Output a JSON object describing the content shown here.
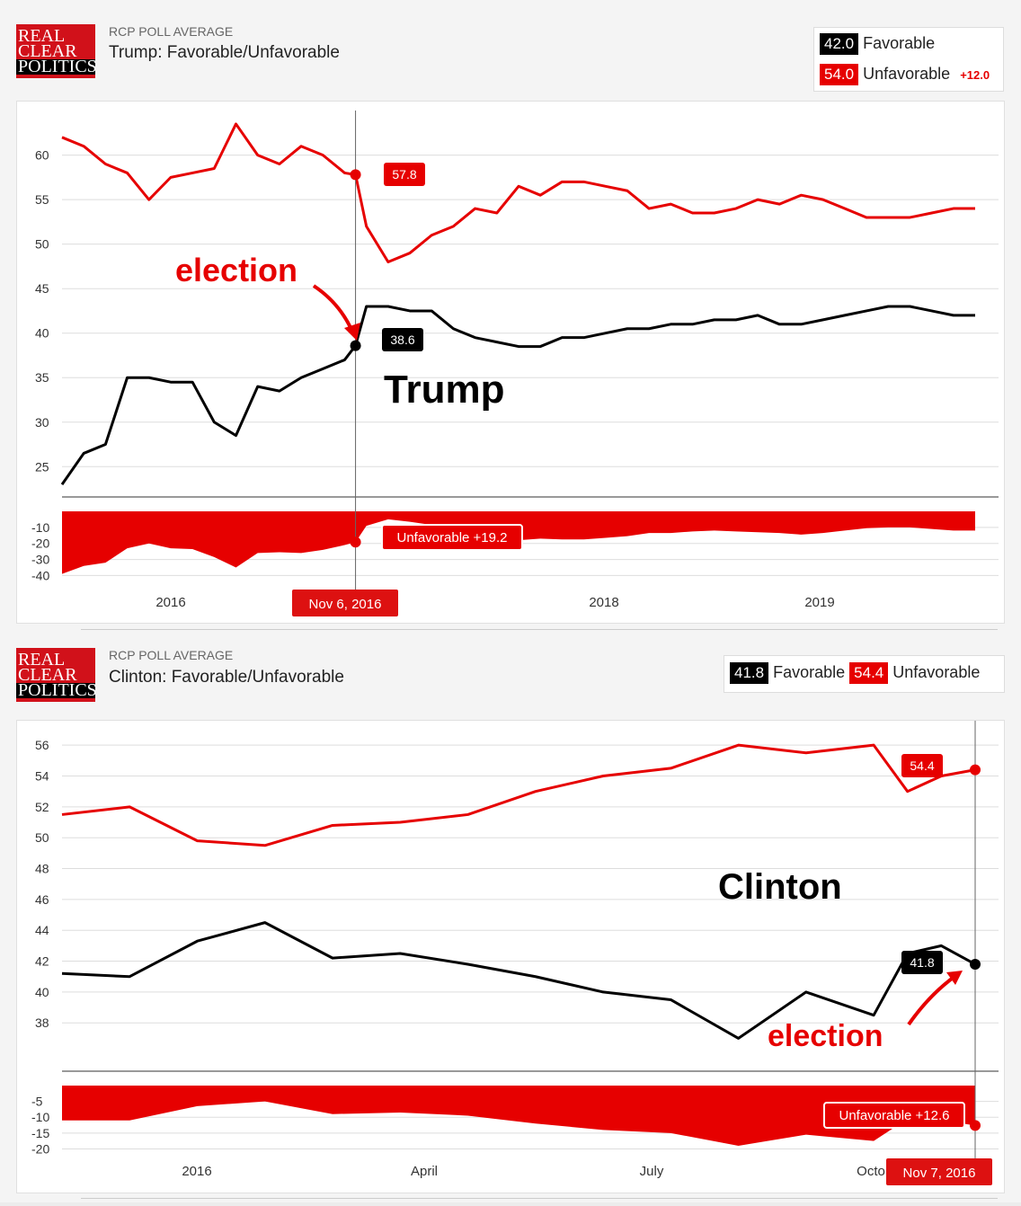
{
  "trump_panel": {
    "logo_line1": "REAL",
    "logo_line2": "CLEAR",
    "logo_line3": "POLITICS",
    "kicker": "RCP POLL AVERAGE",
    "title": "Trump: Favorable/Unfavorable",
    "favorable_value": "42.0",
    "favorable_label": "Favorable",
    "unfavorable_value": "54.0",
    "unfavorable_label": "Unfavorable",
    "spread": "+12.0"
  },
  "clinton_panel": {
    "logo_line1": "REAL",
    "logo_line2": "CLEAR",
    "logo_line3": "POLITICS",
    "kicker": "RCP POLL AVERAGE",
    "title": "Clinton: Favorable/Unfavorable",
    "favorable_value": "41.8",
    "favorable_label": "Favorable",
    "unfavorable_value": "54.4",
    "unfavorable_label": "Unfavorable"
  },
  "colors": {
    "red": "#e60000",
    "black": "#000000",
    "grid": "#dddddd"
  },
  "chart_data": [
    {
      "type": "line",
      "title": "Trump: Favorable/Unfavorable",
      "x": [
        2015.5,
        2015.6,
        2015.7,
        2015.8,
        2015.9,
        2016.0,
        2016.1,
        2016.2,
        2016.3,
        2016.4,
        2016.5,
        2016.6,
        2016.7,
        2016.8,
        2016.85,
        2016.9,
        2017.0,
        2017.1,
        2017.2,
        2017.3,
        2017.4,
        2017.5,
        2017.6,
        2017.7,
        2017.8,
        2017.9,
        2018.0,
        2018.1,
        2018.2,
        2018.3,
        2018.4,
        2018.5,
        2018.6,
        2018.7,
        2018.8,
        2018.9,
        2019.0,
        2019.1,
        2019.2,
        2019.3,
        2019.4,
        2019.5,
        2019.6,
        2019.7
      ],
      "series": [
        {
          "name": "Unfavorable",
          "values": [
            62,
            61,
            59,
            58,
            55,
            57.5,
            58,
            58.5,
            63.5,
            60,
            59,
            61,
            60,
            58,
            57.8,
            52,
            48,
            49,
            51,
            52,
            54,
            53.5,
            56.5,
            55.5,
            57,
            57,
            56.5,
            56,
            54,
            54.5,
            53.5,
            53.5,
            54,
            55,
            54.5,
            55.5,
            55,
            54,
            53,
            53,
            53,
            53.5,
            54,
            54
          ]
        },
        {
          "name": "Favorable",
          "values": [
            23,
            26.5,
            27.5,
            35,
            35,
            34.5,
            34.5,
            30,
            28.5,
            34,
            33.5,
            35,
            36,
            37,
            38.6,
            43,
            43,
            42.5,
            42.5,
            40.5,
            39.5,
            39,
            38.5,
            38.5,
            39.5,
            39.5,
            40,
            40.5,
            40.5,
            41,
            41,
            41.5,
            41.5,
            42,
            41,
            41,
            41.5,
            42,
            42.5,
            43,
            43,
            42.5,
            42,
            42
          ]
        }
      ],
      "spread": [
        -39,
        -34,
        -32,
        -23,
        -20,
        -23,
        -23.5,
        -28.5,
        -35,
        -26,
        -25.5,
        -26,
        -24,
        -21,
        -19.2,
        -9,
        -5,
        -6.5,
        -8.5,
        -11.5,
        -14.5,
        -14.5,
        -18,
        -17,
        -17.5,
        -17.5,
        -16.5,
        -15.5,
        -13.5,
        -13.5,
        -12.5,
        -12,
        -12.5,
        -13,
        -13.5,
        -14.5,
        -13.5,
        -12,
        -10.5,
        -10,
        -10,
        -11,
        -12,
        -12
      ],
      "yticks": [
        60,
        55,
        50,
        45,
        40,
        35,
        30,
        25
      ],
      "spread_ticks": [
        -10,
        -20,
        -30,
        -40
      ],
      "xticks": [
        "2016",
        "2018",
        "2019"
      ],
      "ylim": [
        22,
        64
      ],
      "election_x": 2016.85,
      "labels": {
        "unfav_callout": "57.8",
        "fav_callout": "38.6",
        "spread_callout": "Unfavorable +19.2",
        "date_tag": "Nov 6, 2016"
      },
      "annotations": [
        "election",
        "Trump"
      ]
    },
    {
      "type": "line",
      "title": "Clinton: Favorable/Unfavorable",
      "x": [
        2015.5,
        2015.6,
        2015.7,
        2015.8,
        2015.9,
        2016.0,
        2016.1,
        2016.2,
        2016.3,
        2016.4,
        2016.5,
        2016.6,
        2016.7,
        2016.75,
        2016.8,
        2016.85
      ],
      "series": [
        {
          "name": "Unfavorable",
          "values": [
            51.5,
            52,
            49.8,
            49.5,
            50.8,
            51,
            51.5,
            53,
            54,
            54.5,
            56,
            55.5,
            56,
            53,
            54,
            54.4
          ]
        },
        {
          "name": "Favorable",
          "values": [
            41.2,
            41,
            43.3,
            44.5,
            42.2,
            42.5,
            41.8,
            41,
            40,
            39.5,
            37,
            40,
            38.5,
            42.5,
            43,
            41.8
          ]
        }
      ],
      "spread": [
        -11,
        -11,
        -6.5,
        -5,
        -9,
        -8.5,
        -9.5,
        -12,
        -14,
        -15,
        -19,
        -15.5,
        -17.5,
        -10.5,
        -11,
        -12.6
      ],
      "yticks": [
        56,
        54,
        52,
        50,
        48,
        46,
        44,
        42,
        40,
        38
      ],
      "spread_ticks": [
        -5,
        -10,
        -15,
        -20
      ],
      "xticks": [
        "2016",
        "April",
        "July",
        "Octo"
      ],
      "ylim": [
        36.5,
        57
      ],
      "election_x": 2016.85,
      "labels": {
        "unfav_callout": "54.4",
        "fav_callout": "41.8",
        "spread_callout": "Unfavorable +12.6",
        "date_tag": "Nov 7, 2016"
      },
      "annotations": [
        "Clinton",
        "election"
      ]
    }
  ]
}
